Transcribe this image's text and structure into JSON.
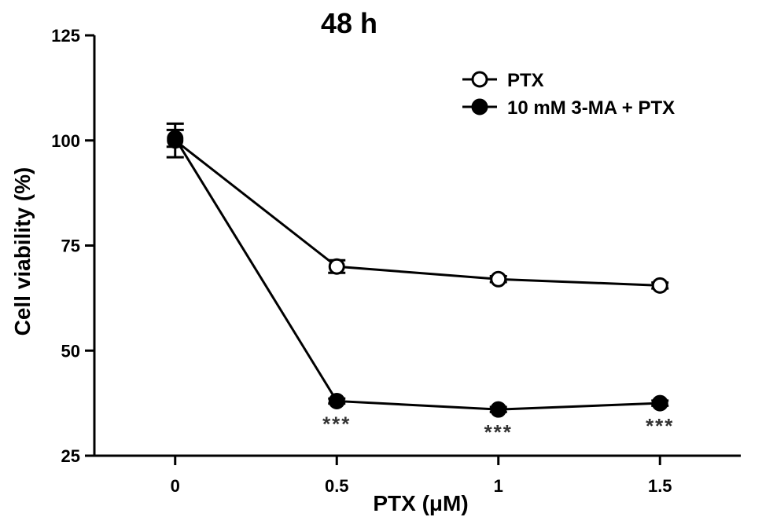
{
  "chart_data": {
    "type": "line",
    "title": "48 h",
    "xlabel": "PTX (μM)",
    "ylabel": "Cell viability (%)",
    "x": [
      0,
      0.5,
      1,
      1.5
    ],
    "x_tick_labels": [
      "0",
      "0.5",
      "1",
      "1.5"
    ],
    "xlim": [
      -0.25,
      1.75
    ],
    "ylim": [
      25,
      125
    ],
    "y_ticks": [
      25,
      50,
      75,
      100,
      125
    ],
    "grid": false,
    "legend_position": "top-right",
    "series": [
      {
        "name": "PTX",
        "marker": "open-circle",
        "values": [
          100,
          70,
          67,
          65.5
        ],
        "errors": [
          4,
          1.5,
          0.7,
          0.7
        ],
        "color": "#000000"
      },
      {
        "name": "10 mM 3-MA + PTX",
        "marker": "filled-circle",
        "values": [
          100.5,
          38,
          36,
          37.5
        ],
        "errors": [
          2,
          0.6,
          0.6,
          0.6
        ],
        "color": "#000000"
      }
    ],
    "annotations": [
      {
        "x": 0.5,
        "text": "***"
      },
      {
        "x": 1,
        "text": "***"
      },
      {
        "x": 1.5,
        "text": "***"
      }
    ]
  }
}
